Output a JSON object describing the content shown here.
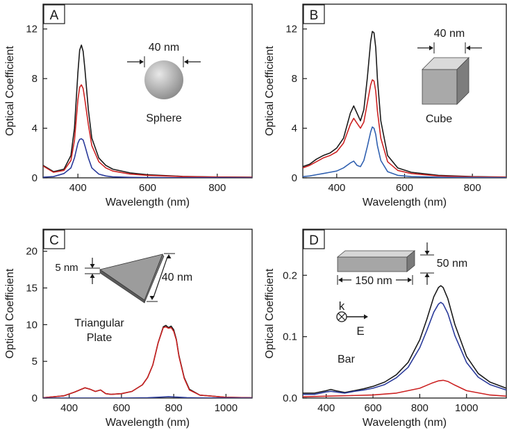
{
  "chart_data": [
    {
      "panel": "A",
      "type": "line",
      "shape_label": "Sphere",
      "dimensions": [
        "40 nm"
      ],
      "xlabel": "Wavelength (nm)",
      "ylabel": "Optical Coefficient",
      "xlim": [
        300,
        900
      ],
      "ylim": [
        0,
        14
      ],
      "xticks": [
        400,
        600,
        800
      ],
      "yticks": [
        0,
        4,
        8,
        12
      ],
      "series": [
        {
          "color": "#1a1a1a",
          "x": [
            300,
            330,
            360,
            380,
            390,
            400,
            405,
            410,
            415,
            420,
            430,
            440,
            460,
            480,
            500,
            550,
            600,
            700,
            800,
            900
          ],
          "y": [
            1.0,
            0.5,
            0.7,
            1.8,
            4.0,
            8.5,
            10.3,
            10.7,
            10.2,
            8.8,
            5.5,
            3.2,
            1.6,
            1.0,
            0.7,
            0.4,
            0.25,
            0.12,
            0.07,
            0.05
          ]
        },
        {
          "color": "#cc2222",
          "x": [
            300,
            330,
            360,
            380,
            390,
            400,
            405,
            410,
            415,
            420,
            430,
            440,
            460,
            480,
            500,
            550,
            600,
            700,
            800,
            900
          ],
          "y": [
            0.95,
            0.45,
            0.6,
            1.4,
            3.0,
            6.3,
            7.3,
            7.5,
            7.2,
            6.3,
            4.3,
            2.6,
            1.3,
            0.8,
            0.55,
            0.3,
            0.2,
            0.1,
            0.06,
            0.04
          ]
        },
        {
          "color": "#2a3a9a",
          "x": [
            300,
            330,
            360,
            380,
            390,
            400,
            405,
            410,
            415,
            420,
            430,
            440,
            460,
            480,
            500,
            550,
            600,
            700,
            800,
            900
          ],
          "y": [
            0.05,
            0.1,
            0.35,
            0.8,
            1.6,
            2.8,
            3.1,
            3.15,
            3.05,
            2.6,
            1.6,
            0.8,
            0.3,
            0.15,
            0.08,
            0.04,
            0.02,
            0.01,
            0.01,
            0.0
          ]
        }
      ]
    },
    {
      "panel": "B",
      "type": "line",
      "shape_label": "Cube",
      "dimensions": [
        "40 nm"
      ],
      "xlabel": "Wavelength (nm)",
      "ylabel": "Optical Coefficient",
      "xlim": [
        300,
        900
      ],
      "ylim": [
        0,
        14
      ],
      "xticks": [
        400,
        600,
        800
      ],
      "yticks": [
        0,
        4,
        8,
        12
      ],
      "series": [
        {
          "color": "#1a1a1a",
          "x": [
            300,
            320,
            340,
            360,
            380,
            400,
            420,
            440,
            450,
            460,
            470,
            480,
            490,
            500,
            505,
            510,
            515,
            520,
            530,
            550,
            580,
            620,
            700,
            800,
            900
          ],
          "y": [
            0.9,
            1.1,
            1.5,
            1.8,
            2.0,
            2.4,
            3.2,
            5.2,
            5.8,
            5.2,
            4.6,
            5.5,
            8.0,
            11.0,
            11.8,
            11.7,
            10.5,
            8.0,
            4.6,
            1.8,
            0.8,
            0.45,
            0.2,
            0.1,
            0.06
          ]
        },
        {
          "color": "#cc2222",
          "x": [
            300,
            320,
            340,
            360,
            380,
            400,
            420,
            440,
            450,
            460,
            470,
            480,
            490,
            500,
            505,
            510,
            515,
            520,
            530,
            550,
            580,
            620,
            700,
            800,
            900
          ],
          "y": [
            0.8,
            1.0,
            1.3,
            1.6,
            1.8,
            2.1,
            2.8,
            4.3,
            4.8,
            4.4,
            4.0,
            4.5,
            6.0,
            7.5,
            7.9,
            7.8,
            7.0,
            5.4,
            3.2,
            1.3,
            0.6,
            0.35,
            0.15,
            0.08,
            0.05
          ]
        },
        {
          "color": "#3060b0",
          "x": [
            300,
            320,
            340,
            360,
            380,
            400,
            420,
            440,
            450,
            460,
            470,
            480,
            490,
            500,
            505,
            510,
            515,
            520,
            530,
            550,
            580,
            620,
            700,
            800,
            900
          ],
          "y": [
            0.1,
            0.15,
            0.25,
            0.35,
            0.45,
            0.55,
            0.8,
            1.2,
            1.35,
            1.0,
            0.9,
            1.4,
            2.5,
            3.7,
            4.1,
            4.0,
            3.5,
            2.6,
            1.4,
            0.5,
            0.2,
            0.1,
            0.05,
            0.02,
            0.01
          ]
        }
      ]
    },
    {
      "panel": "C",
      "type": "line",
      "shape_label": "Triangular Plate",
      "dimensions": [
        "5 nm",
        "40 nm"
      ],
      "xlabel": "Wavelength (nm)",
      "ylabel": "Optical Coefficient",
      "xlim": [
        300,
        1100
      ],
      "ylim": [
        0,
        23
      ],
      "xticks": [
        400,
        600,
        800,
        1000
      ],
      "yticks": [
        0,
        5,
        10,
        15,
        20
      ],
      "series": [
        {
          "color": "#1a1a1a",
          "x": [
            300,
            380,
            420,
            460,
            480,
            500,
            520,
            540,
            560,
            600,
            640,
            680,
            700,
            720,
            740,
            760,
            770,
            780,
            790,
            800,
            810,
            820,
            840,
            860,
            900,
            1000,
            1100
          ],
          "y": [
            0.05,
            0.3,
            0.8,
            1.4,
            1.2,
            0.9,
            1.1,
            0.6,
            0.5,
            0.6,
            0.9,
            1.8,
            2.8,
            4.5,
            7.5,
            9.7,
            9.9,
            9.6,
            9.8,
            9.3,
            8.0,
            5.8,
            2.8,
            1.2,
            0.4,
            0.1,
            0.05
          ]
        },
        {
          "color": "#cc2222",
          "x": [
            300,
            380,
            420,
            460,
            480,
            500,
            520,
            540,
            560,
            600,
            640,
            680,
            700,
            720,
            740,
            760,
            770,
            780,
            790,
            800,
            810,
            820,
            840,
            860,
            900,
            1000,
            1100
          ],
          "y": [
            0.05,
            0.3,
            0.8,
            1.4,
            1.2,
            0.9,
            1.1,
            0.6,
            0.5,
            0.6,
            0.9,
            1.8,
            2.8,
            4.5,
            7.5,
            9.6,
            9.7,
            9.5,
            9.6,
            9.1,
            7.9,
            5.7,
            2.7,
            1.1,
            0.4,
            0.1,
            0.05
          ]
        },
        {
          "color": "#2a3a9a",
          "x": [
            300,
            600,
            700,
            750,
            780,
            800,
            850,
            900,
            1100
          ],
          "y": [
            0.0,
            0.0,
            0.05,
            0.12,
            0.18,
            0.15,
            0.06,
            0.02,
            0.0
          ]
        }
      ]
    },
    {
      "panel": "D",
      "type": "line",
      "shape_label": "Bar",
      "dimensions": [
        "50 nm",
        "150 nm"
      ],
      "axis_annotations": [
        "k",
        "E"
      ],
      "xlabel": "Wavelength (nm)",
      "ylabel": "Optical Coefficient",
      "xlim": [
        300,
        1170
      ],
      "ylim": [
        0,
        0.275
      ],
      "xticks": [
        400,
        600,
        800,
        1000
      ],
      "yticks": [
        0.0,
        0.1,
        0.2
      ],
      "ytick_labels": [
        "0.0",
        "0.1",
        "0.2"
      ],
      "series": [
        {
          "color": "#1a1a1a",
          "x": [
            300,
            350,
            400,
            420,
            440,
            480,
            520,
            560,
            600,
            650,
            700,
            750,
            800,
            830,
            860,
            880,
            890,
            900,
            920,
            950,
            1000,
            1050,
            1100,
            1170
          ],
          "y": [
            0.008,
            0.008,
            0.012,
            0.014,
            0.012,
            0.009,
            0.012,
            0.015,
            0.019,
            0.026,
            0.038,
            0.058,
            0.095,
            0.128,
            0.165,
            0.18,
            0.183,
            0.18,
            0.162,
            0.12,
            0.068,
            0.04,
            0.026,
            0.016
          ]
        },
        {
          "color": "#2a3a9a",
          "x": [
            300,
            350,
            400,
            420,
            440,
            480,
            520,
            560,
            600,
            650,
            700,
            750,
            800,
            830,
            860,
            880,
            890,
            900,
            920,
            950,
            1000,
            1050,
            1100,
            1170
          ],
          "y": [
            0.006,
            0.006,
            0.01,
            0.011,
            0.01,
            0.008,
            0.011,
            0.013,
            0.016,
            0.022,
            0.033,
            0.05,
            0.082,
            0.11,
            0.14,
            0.153,
            0.156,
            0.153,
            0.138,
            0.102,
            0.058,
            0.034,
            0.022,
            0.013
          ]
        },
        {
          "color": "#cc2222",
          "x": [
            300,
            400,
            500,
            600,
            700,
            800,
            850,
            880,
            900,
            920,
            950,
            1000,
            1100,
            1170
          ],
          "y": [
            0.002,
            0.003,
            0.004,
            0.005,
            0.008,
            0.016,
            0.024,
            0.028,
            0.029,
            0.027,
            0.021,
            0.012,
            0.005,
            0.003
          ]
        }
      ]
    }
  ]
}
